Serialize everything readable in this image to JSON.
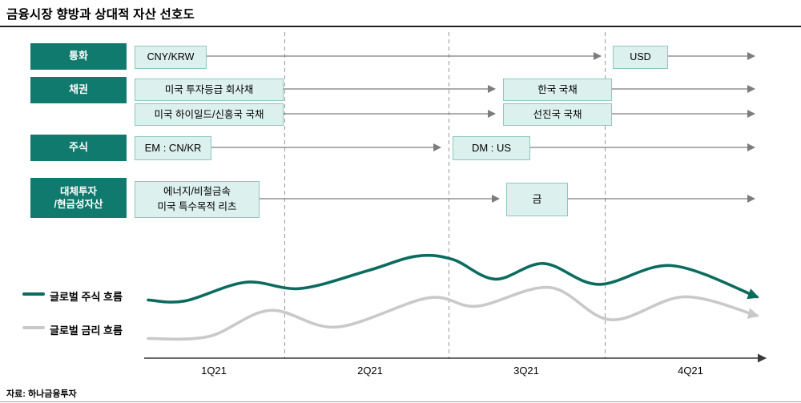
{
  "title": "금융시장 향방과 상대적 자산 선호도",
  "source": "자료: 하나금융투자",
  "colors": {
    "category_box": "#0f7a6d",
    "category_text": "#ffffff",
    "item_box_bg": "#dcf0ed",
    "item_box_border": "#8cc8c0",
    "arrow": "#7c7c7c",
    "divider": "#9a9a9a",
    "axis": "#3a3a3a"
  },
  "categories": [
    "통화",
    "채권",
    "주식",
    "대체투자\n/현금성자산"
  ],
  "flows": [
    {
      "category": "통화",
      "start": "CNY/KRW",
      "end": "USD"
    },
    {
      "category": "채권",
      "start": "미국 투자등급 회사채",
      "end": "한국 국채"
    },
    {
      "category": "채권",
      "start": "미국 하이일드/신흥국 국채",
      "end": "선진국 국채"
    },
    {
      "category": "주식",
      "start": "EM : CN/KR",
      "end": "DM : US"
    },
    {
      "category": "대체투자/현금성자산",
      "start": "에너지/비철금속\n미국 특수목적 리츠",
      "end": "금"
    }
  ],
  "chart_data": {
    "type": "line",
    "title": "금융시장 향방과 상대적 자산 선호도",
    "xlabel": "",
    "ylabel": "",
    "x_tick_labels": [
      "1Q21",
      "2Q21",
      "3Q21",
      "4Q21"
    ],
    "y_axis_note": "stylized relative level, no numeric scale shown (values estimated on 0-100 band)",
    "legend_position": "left",
    "grid": "vertical dashed quarter dividers",
    "series": [
      {
        "name": "글로벌 주식 흐름",
        "color": "#0c6b5f",
        "x_fraction": [
          0,
          0.06,
          0.16,
          0.25,
          0.36,
          0.44,
          0.5,
          0.57,
          0.65,
          0.74,
          0.86,
          1.0
        ],
        "values": [
          52,
          51,
          69,
          63,
          80,
          94,
          91,
          72,
          87,
          67,
          85,
          55
        ]
      },
      {
        "name": "글로벌 금리 흐름",
        "color": "#c9c9c9",
        "x_fraction": [
          0,
          0.1,
          0.2,
          0.31,
          0.46,
          0.54,
          0.66,
          0.76,
          0.88,
          1.0
        ],
        "values": [
          15,
          17,
          42,
          26,
          54,
          46,
          64,
          33,
          55,
          37
        ]
      }
    ]
  }
}
